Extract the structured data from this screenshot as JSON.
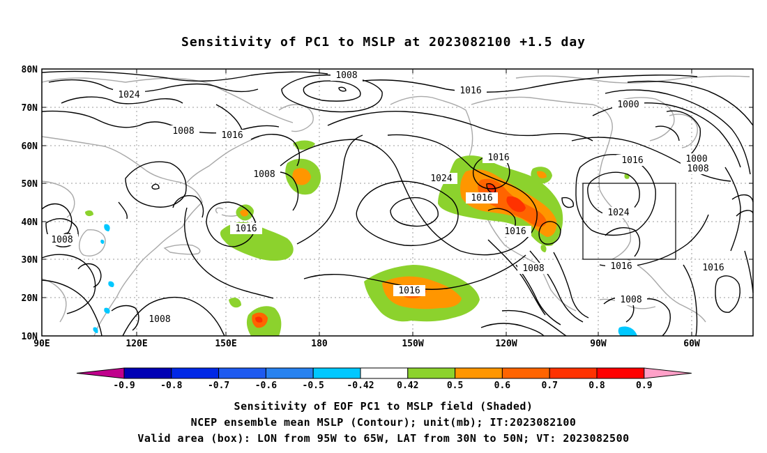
{
  "title": "Sensitivity of PC1 to MSLP at 2023082100 +1.5 day",
  "lat_labels": [
    "80N",
    "70N",
    "60N",
    "50N",
    "40N",
    "30N",
    "20N",
    "10N"
  ],
  "lon_labels": [
    "90E",
    "120E",
    "150E",
    "180",
    "150W",
    "120W",
    "90W",
    "60W"
  ],
  "colorbar": {
    "colors": [
      "#c0008c",
      "#0000b4",
      "#0028e6",
      "#1e5af0",
      "#2882f0",
      "#00c8ff",
      "#ffffff",
      "#8cd22d",
      "#ff9600",
      "#ff6400",
      "#ff3200",
      "#ff0000",
      "#ffa0c8"
    ],
    "labels": [
      "-0.9",
      "-0.8",
      "-0.7",
      "-0.6",
      "-0.5",
      "-0.42",
      "0.42",
      "0.5",
      "0.6",
      "0.7",
      "0.8",
      "0.9"
    ]
  },
  "contour_labels": [
    "1024",
    "1008",
    "1016",
    "1008",
    "1008",
    "1016",
    "1024",
    "1016",
    "1016",
    "1016",
    "1016",
    "1016",
    "1008",
    "1016",
    "1008",
    "1016",
    "1024",
    "1016",
    "1016",
    "1000",
    "1000",
    "1008",
    "1008",
    "1008",
    "1008"
  ],
  "valid_box": {
    "lon_from": "95W",
    "lon_to": "65W",
    "lat_from": "30N",
    "lat_to": "50N"
  },
  "captions": [
    "Sensitivity of EOF PC1 to MSLP field (Shaded)",
    "NCEP ensemble mean MSLP (Contour); unit(mb); IT:2023082100",
    "Valid area (box): LON from 95W to 65W, LAT from 30N to 50N; VT: 2023082500"
  ]
}
